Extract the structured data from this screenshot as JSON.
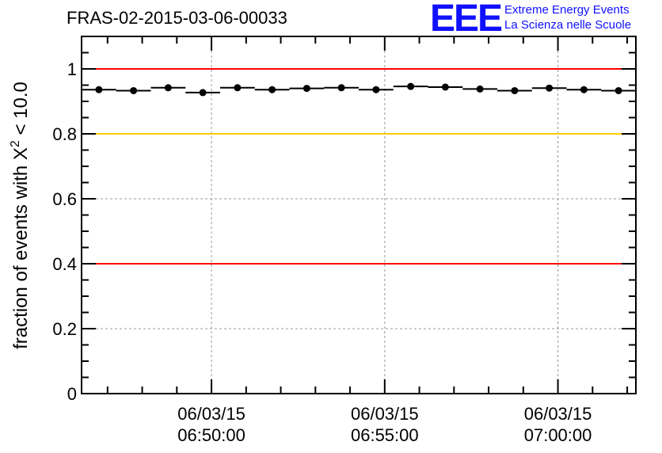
{
  "chart_data": {
    "type": "scatter",
    "title": "FRAS-02-2015-03-06-00033",
    "xlabel": "",
    "ylabel": "fraction of events with X² < 10.0",
    "ylabel_parts": {
      "main": "fraction of events with X",
      "sup": "2",
      "tail": " < 10.0"
    },
    "ylim": [
      0,
      1.1
    ],
    "xlim_minutes_from_0650": [
      -3.75,
      12.25
    ],
    "x_bin_width_minutes": 1,
    "grid": true,
    "yticks": [
      "0",
      "0.2",
      "0.4",
      "0.6",
      "0.8",
      "1"
    ],
    "ytick_values": [
      0,
      0.2,
      0.4,
      0.6,
      0.8,
      1
    ],
    "xticks": [
      {
        "value": 0,
        "date": "06/03/15",
        "time": "06:50:00"
      },
      {
        "value": 5,
        "date": "06/03/15",
        "time": "06:55:00"
      },
      {
        "value": 10,
        "date": "06/03/15",
        "time": "07:00:00"
      }
    ],
    "x": [
      -3.25,
      -2.25,
      -1.25,
      -0.25,
      0.75,
      1.75,
      2.75,
      3.75,
      4.75,
      5.75,
      6.75,
      7.75,
      8.75,
      9.75,
      10.75,
      11.75
    ],
    "values": [
      0.936,
      0.933,
      0.942,
      0.927,
      0.942,
      0.936,
      0.94,
      0.942,
      0.936,
      0.946,
      0.944,
      0.938,
      0.933,
      0.941,
      0.936,
      0.933
    ],
    "reference_lines": [
      {
        "y": 1.0,
        "color": "#ff0000"
      },
      {
        "y": 0.8,
        "color": "#ffcc00"
      },
      {
        "y": 0.4,
        "color": "#ff0000"
      }
    ]
  },
  "logo": {
    "mark": "EEE",
    "line1": "Extreme Energy Events",
    "line2": "La Scienza nelle Scuole",
    "color": "#1010ff"
  }
}
